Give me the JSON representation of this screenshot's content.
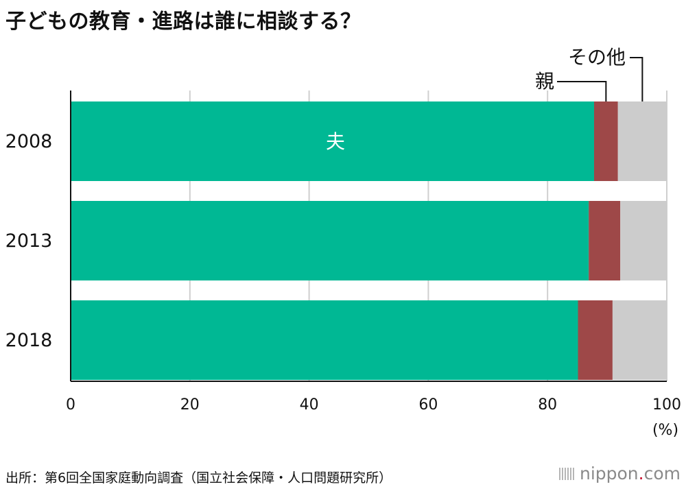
{
  "title": "子どもの教育・進路は誰に相談する？",
  "chart_data": {
    "type": "bar",
    "orientation": "horizontal",
    "stacked": true,
    "categories": [
      "2008",
      "2013",
      "2018"
    ],
    "series": [
      {
        "name": "夫",
        "values": [
          87.8,
          86.9,
          85.1
        ],
        "color": "#00b894"
      },
      {
        "name": "親",
        "values": [
          4.0,
          5.3,
          5.8
        ],
        "color": "#9e4848"
      },
      {
        "name": "その他",
        "values": [
          8.2,
          7.8,
          9.1
        ],
        "color": "#cccccc"
      }
    ],
    "x_ticks": [
      "0",
      "20",
      "40",
      "60",
      "80",
      "100"
    ],
    "xlim": [
      0,
      100
    ],
    "unit": "(%)",
    "grid": true
  },
  "source": "出所：第6回全国家庭動向調査（国立社会保障・人口問題研究所）",
  "logo": {
    "name": "nippon",
    "dot": ".",
    "suffix": "com"
  }
}
